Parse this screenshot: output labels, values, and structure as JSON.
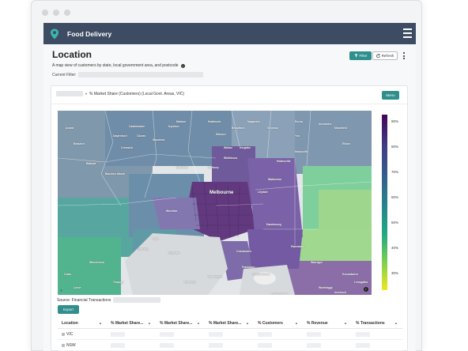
{
  "app": {
    "title": "Food Delivery"
  },
  "page": {
    "title": "Location",
    "subtitle": "A map view of customers by state, local government area, and postcode",
    "current_filter_label": "Current Filter:"
  },
  "toolbar": {
    "filter_label": "Filter",
    "refresh_label": "Refresh"
  },
  "card": {
    "heading": "% Market Share (Customers) (Local Govt. Areas, VIC)",
    "menu_label": "Menu"
  },
  "map": {
    "place_labels": [
      "Melbourne",
      "Ballarat",
      "Geelong",
      "Frankston",
      "Werribee",
      "Dandenong",
      "Lilydale",
      "Pakenham",
      "Warburton",
      "Sunbury",
      "Cranbourne",
      "Kyneton",
      "Daylesford",
      "Bacchus Marsh",
      "Healesville",
      "Mornington",
      "Warragul",
      "French Island",
      "Torquay",
      "Lorne",
      "Winchelsea",
      "Colac",
      "Gisborne",
      "Kilmore",
      "Seymour",
      "Yea",
      "Whittlesea",
      "Kinglake",
      "Castlemaine",
      "Woodend",
      "Lara",
      "Drysdale",
      "Rosebud",
      "Phillip Island",
      "Wonthaggi",
      "Inverloch",
      "Korumburra",
      "Leongatha",
      "Marysville",
      "Alexandra",
      "Ararat",
      "Beaufort",
      "Creswick",
      "Clunes",
      "Maldon",
      "Heathcote",
      "Nagambie",
      "Euroa",
      "Broadford",
      "Wallan",
      "Mansfield",
      "Eildon"
    ],
    "attribution": "©",
    "info_glyph": "i"
  },
  "legend": {
    "ticks": [
      "90%",
      "80%",
      "70%",
      "60%",
      "50%",
      "40%",
      "30%"
    ],
    "colors": [
      "#44045a",
      "#423c86",
      "#345e8c",
      "#25858d",
      "#22a884",
      "#7bd04f",
      "#f0e61f"
    ]
  },
  "source_label": "Source: Financial Transactions",
  "export_label": "Export",
  "table": {
    "columns": [
      "Location",
      "% Market Share...",
      "% Market Share...",
      "% Market Share...",
      "% Customers",
      "% Revenue",
      "% Transactions"
    ],
    "rows": [
      {
        "location": "VIC"
      },
      {
        "location": "NSW"
      }
    ]
  },
  "colors": {
    "appbar": "#3d4c63",
    "accent": "#2f8f8c"
  }
}
